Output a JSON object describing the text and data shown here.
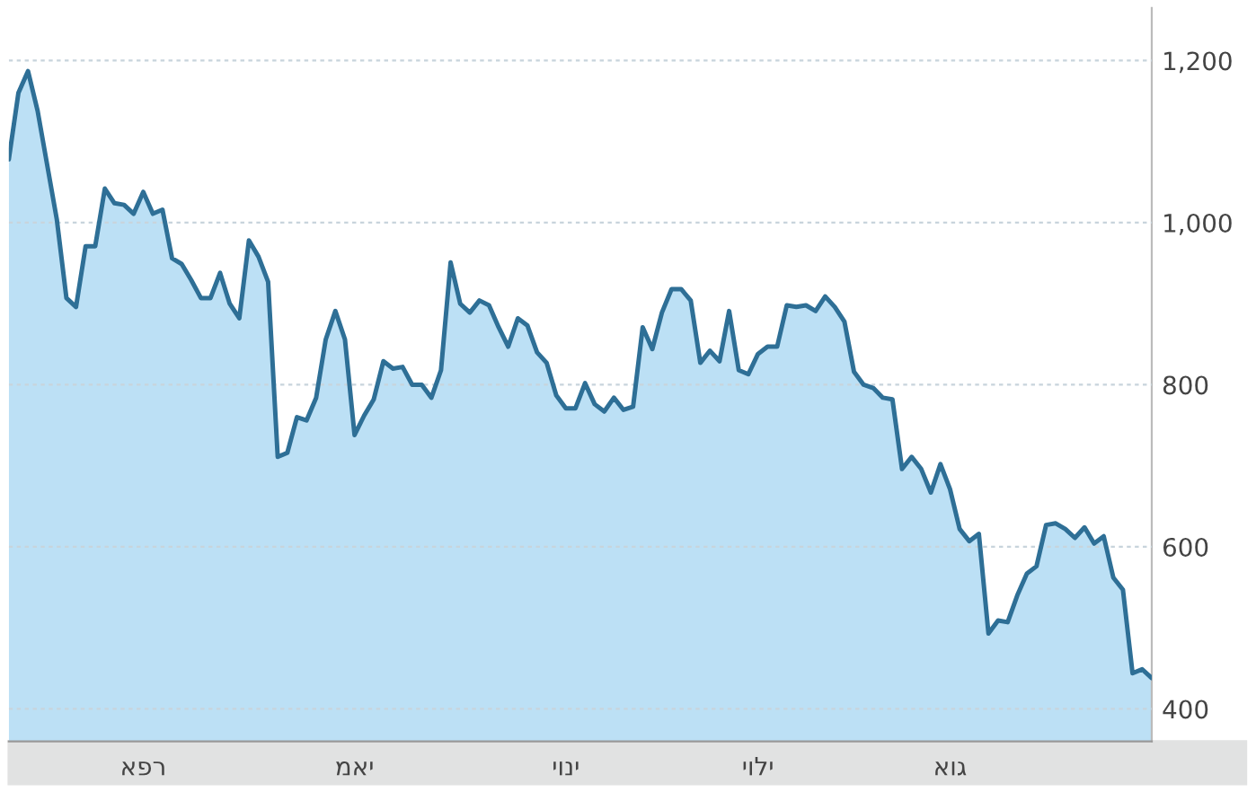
{
  "chart_data": {
    "type": "area",
    "categories": [
      null,
      null,
      null,
      null,
      null,
      null,
      null,
      null,
      null,
      null,
      null,
      null,
      null,
      null,
      "אפר",
      null,
      null,
      null,
      null,
      null,
      null,
      null,
      null,
      null,
      null,
      null,
      null,
      null,
      null,
      null,
      null,
      null,
      null,
      null,
      null,
      null,
      "מאי",
      null,
      null,
      null,
      null,
      null,
      null,
      null,
      null,
      null,
      null,
      null,
      null,
      null,
      null,
      null,
      null,
      null,
      null,
      null,
      null,
      null,
      "יוני",
      null,
      null,
      null,
      null,
      null,
      null,
      null,
      null,
      null,
      null,
      null,
      null,
      null,
      null,
      null,
      null,
      null,
      null,
      null,
      "יולי",
      null,
      null,
      null,
      null,
      null,
      null,
      null,
      null,
      null,
      null,
      null,
      null,
      null,
      null,
      null,
      null,
      null,
      null,
      null,
      "אוג",
      null,
      null,
      null,
      null,
      null,
      null,
      null,
      null,
      null,
      null,
      null,
      null,
      null,
      null,
      null,
      null,
      null,
      null,
      null,
      null,
      null
    ],
    "series": [
      {
        "color": "#2e6f96",
        "values": [
          1078,
          1160,
          1187,
          1138,
          1071,
          1004,
          907,
          896,
          971,
          971,
          1042,
          1024,
          1022,
          1011,
          1038,
          1011,
          1016,
          956,
          949,
          929,
          907,
          907,
          938,
          900,
          882,
          978,
          958,
          927,
          711,
          716,
          760,
          756,
          784,
          856,
          891,
          856,
          738,
          762,
          782,
          829,
          820,
          822,
          800,
          800,
          784,
          818,
          951,
          900,
          889,
          904,
          898,
          871,
          847,
          882,
          873,
          840,
          827,
          787,
          771,
          771,
          802,
          776,
          767,
          784,
          769,
          773,
          871,
          844,
          889,
          918,
          918,
          904,
          827,
          842,
          829,
          891,
          818,
          813,
          838,
          847,
          847,
          898,
          896,
          898,
          891,
          909,
          896,
          878,
          816,
          800,
          796,
          784,
          782,
          696,
          711,
          696,
          667,
          702,
          671,
          622,
          607,
          616,
          493,
          509,
          507,
          540,
          567,
          576,
          627,
          629,
          622,
          611,
          624,
          604,
          613,
          562,
          547,
          444,
          449,
          438
        ]
      }
    ],
    "ylim": [
      360,
      1265
    ],
    "yticks": [
      {
        "value": 400,
        "label": "400"
      },
      {
        "value": 600,
        "label": "600"
      },
      {
        "value": 800,
        "label": "800"
      },
      {
        "value": 1000,
        "label": "1,000"
      },
      {
        "value": 1200,
        "label": "1,200"
      }
    ],
    "grid": "y",
    "legend": false
  }
}
